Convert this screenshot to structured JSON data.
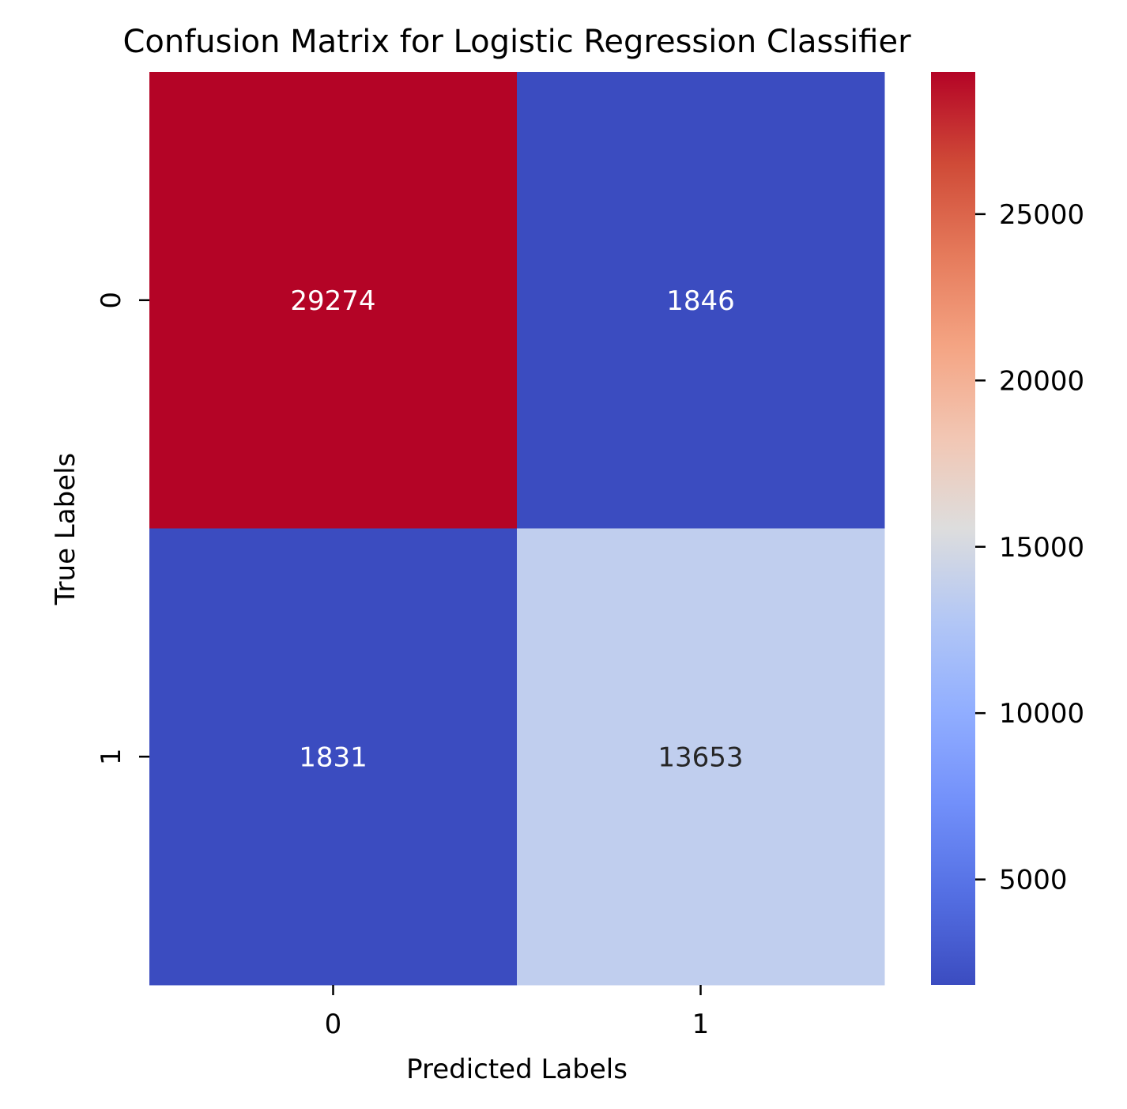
{
  "chart_data": {
    "type": "heatmap",
    "title": "Confusion Matrix for Logistic Regression Classifier",
    "xlabel": "Predicted Labels",
    "ylabel": "True Labels",
    "x_categories": [
      "0",
      "1"
    ],
    "y_categories": [
      "0",
      "1"
    ],
    "values": [
      [
        29274,
        1846
      ],
      [
        1831,
        13653
      ]
    ],
    "colormap": "coolwarm",
    "colorbar": {
      "range": [
        1831,
        29274
      ],
      "ticks": [
        5000,
        10000,
        15000,
        20000,
        25000
      ],
      "tick_labels": [
        "5000",
        "10000",
        "15000",
        "20000",
        "25000"
      ]
    },
    "annotation_colors": {
      "on_dark": "#ffffff",
      "on_light": "#262626"
    },
    "grid": false,
    "legend": "colorbar-right"
  }
}
